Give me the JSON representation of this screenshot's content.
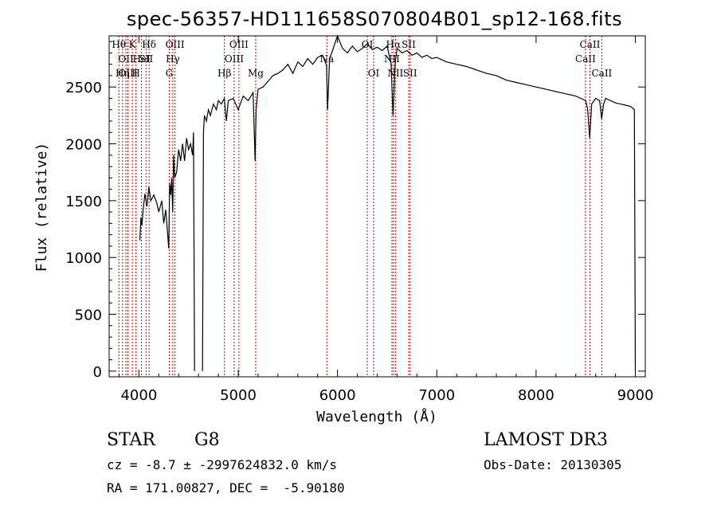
{
  "chart_data": {
    "type": "line",
    "title": "spec-56357-HD111658S070804B01_sp12-168.fits",
    "xlabel": "Wavelength (Å)",
    "ylabel": "Flux (relative)",
    "xlim": [
      3700,
      9100
    ],
    "ylim": [
      -50,
      2950
    ],
    "x_ticks": [
      4000,
      5000,
      6000,
      7000,
      8000,
      9000
    ],
    "y_ticks": [
      0,
      500,
      1000,
      1500,
      2000,
      2500
    ],
    "series": [
      {
        "name": "flux",
        "x": [
          3700,
          3780,
          3840,
          3920,
          4000,
          4010,
          4020,
          4030,
          4040,
          4060,
          4080,
          4100,
          4120,
          4150,
          4180,
          4200,
          4230,
          4250,
          4270,
          4290,
          4300,
          4310,
          4320,
          4330,
          4340,
          4350,
          4360,
          4380,
          4400,
          4420,
          4440,
          4460,
          4480,
          4500,
          4520,
          4540,
          4550,
          4560,
          4580,
          4600,
          4620,
          4640,
          4650,
          4660,
          4680,
          4700,
          4720,
          4750,
          4780,
          4800,
          4830,
          4860,
          4880,
          4900,
          4950,
          5000,
          5050,
          5100,
          5150,
          5170,
          5180,
          5200,
          5250,
          5300,
          5350,
          5400,
          5450,
          5500,
          5550,
          5600,
          5650,
          5700,
          5750,
          5800,
          5850,
          5890,
          5900,
          5920,
          5950,
          6000,
          6050,
          6100,
          6150,
          6200,
          6250,
          6300,
          6350,
          6400,
          6450,
          6500,
          6540,
          6560,
          6580,
          6600,
          6650,
          6700,
          6750,
          6800,
          6850,
          6900,
          6950,
          7000,
          7100,
          7200,
          7300,
          7400,
          7500,
          7600,
          7700,
          7800,
          7900,
          8000,
          8100,
          8200,
          8300,
          8400,
          8450,
          8500,
          8520,
          8540,
          8560,
          8600,
          8640,
          8660,
          8680,
          8700,
          8750,
          8800,
          8850,
          8900,
          8950,
          8990,
          9000
        ],
        "y": [
          null,
          null,
          null,
          null,
          null,
          1150,
          1350,
          1280,
          1400,
          1560,
          1450,
          1620,
          1500,
          1550,
          1480,
          1400,
          1500,
          1300,
          1420,
          1200,
          1080,
          1650,
          1550,
          1700,
          1400,
          1900,
          1700,
          1750,
          1950,
          1850,
          2000,
          1850,
          2050,
          1950,
          2000,
          1900,
          2100,
          0,
          null,
          null,
          null,
          0,
          2100,
          2250,
          2200,
          2300,
          2250,
          2350,
          2300,
          2380,
          2350,
          2400,
          2200,
          2380,
          2400,
          2300,
          2420,
          2380,
          2450,
          1850,
          2300,
          2480,
          2500,
          2550,
          2600,
          2620,
          2650,
          2700,
          2620,
          2720,
          2680,
          2750,
          2700,
          2760,
          2780,
          2690,
          2300,
          2750,
          2820,
          2950,
          2840,
          2800,
          2860,
          2810,
          2840,
          2880,
          2830,
          2850,
          2820,
          2860,
          2700,
          2250,
          2700,
          2840,
          2800,
          2820,
          2780,
          2800,
          2760,
          2780,
          2750,
          2760,
          2720,
          2700,
          2680,
          2650,
          2620,
          2600,
          2560,
          2540,
          2520,
          2500,
          2480,
          2460,
          2440,
          2420,
          2400,
          2380,
          2300,
          2050,
          2350,
          2400,
          2380,
          2220,
          2350,
          2400,
          2380,
          2360,
          2350,
          2340,
          2330,
          2300,
          0
        ]
      }
    ],
    "line_markers": [
      {
        "x": 3798,
        "label": "Hθ",
        "row": 0
      },
      {
        "x": 3835,
        "label": "Hη",
        "row": 2
      },
      {
        "x": 3869,
        "label": "OII",
        "row": 1
      },
      {
        "x": 3889,
        "label": "OIII",
        "row": 2
      },
      {
        "x": 3934,
        "label": "K",
        "row": 0
      },
      {
        "x": 3970,
        "label": "H",
        "row": 2
      },
      {
        "x": 4026,
        "label": "HeI",
        "row": 1
      },
      {
        "x": 4072,
        "label": "SII",
        "row": 1
      },
      {
        "x": 4102,
        "label": "Hδ",
        "row": 0
      },
      {
        "x": 4305,
        "label": "G",
        "row": 2
      },
      {
        "x": 4341,
        "label": "Hγ",
        "row": 1
      },
      {
        "x": 4363,
        "label": "OIII",
        "row": 0
      },
      {
        "x": 4861,
        "label": "Hβ",
        "row": 2
      },
      {
        "x": 4959,
        "label": "OIII",
        "row": 1
      },
      {
        "x": 5007,
        "label": "OIII",
        "row": 0
      },
      {
        "x": 5176,
        "label": "Mg",
        "row": 2
      },
      {
        "x": 5893,
        "label": "Na",
        "row": 1
      },
      {
        "x": 6300,
        "label": "OI",
        "row": 0
      },
      {
        "x": 6364,
        "label": "OI",
        "row": 2
      },
      {
        "x": 6548,
        "label": "NII",
        "row": 1
      },
      {
        "x": 6563,
        "label": "Hα",
        "row": 0
      },
      {
        "x": 6583,
        "label": "NII",
        "row": 2
      },
      {
        "x": 6717,
        "label": "SII",
        "row": 0
      },
      {
        "x": 6731,
        "label": "SII",
        "row": 2
      },
      {
        "x": 8498,
        "label": "CaII",
        "row": 1
      },
      {
        "x": 8542,
        "label": "CaII",
        "row": 0
      },
      {
        "x": 8662,
        "label": "CaII",
        "row": 2
      }
    ],
    "marker_color": "#cc0000"
  },
  "info": {
    "object_class": "STAR",
    "subclass": "G8",
    "survey": "LAMOST DR3",
    "cz": "cz = -8.7 ± -2997624832.0 km/s",
    "obs_date": "Obs-Date: 20130305",
    "radec": "RA = 171.00827, DEC =  -5.90180"
  }
}
